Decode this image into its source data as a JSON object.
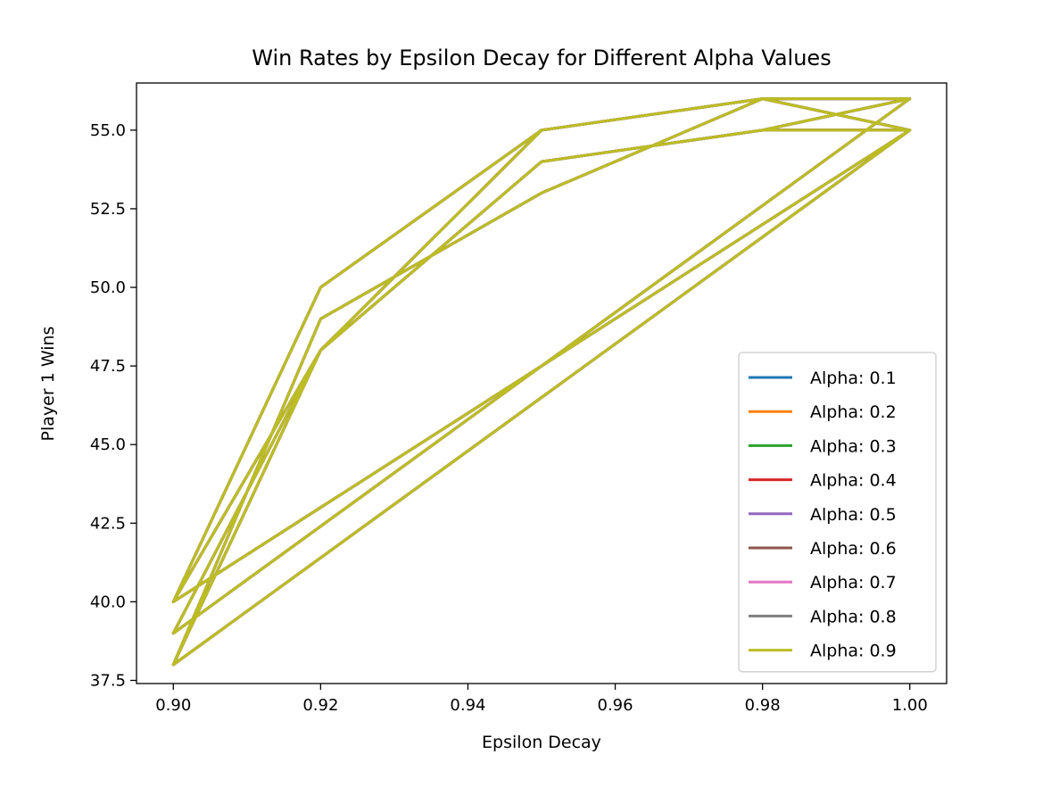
{
  "chart_data": {
    "type": "line",
    "title": "Win Rates by Epsilon Decay for Different Alpha Values",
    "xlabel": "Epsilon Decay",
    "ylabel": "Player 1 Wins",
    "xlim": [
      0.895,
      1.005
    ],
    "ylim": [
      37.4,
      56.5
    ],
    "xticks": [
      0.9,
      0.92,
      0.94,
      0.96,
      0.98,
      1.0
    ],
    "xtick_labels": [
      "0.90",
      "0.92",
      "0.94",
      "0.96",
      "0.98",
      "1.00"
    ],
    "yticks": [
      37.5,
      40.0,
      42.5,
      45.0,
      47.5,
      50.0,
      52.5,
      55.0
    ],
    "ytick_labels": [
      "37.5",
      "40.0",
      "42.5",
      "45.0",
      "47.5",
      "50.0",
      "52.5",
      "55.0"
    ],
    "grid": false,
    "legend_position": "lower-right",
    "path_points": [
      [
        0.9,
        40
      ],
      [
        0.92,
        50
      ],
      [
        0.95,
        55
      ],
      [
        0.98,
        56
      ],
      [
        1.0,
        56
      ],
      [
        0.9,
        39
      ],
      [
        0.92,
        48
      ],
      [
        0.95,
        54
      ],
      [
        0.98,
        55
      ],
      [
        1.0,
        55
      ],
      [
        0.9,
        38
      ],
      [
        0.92,
        49
      ],
      [
        0.95,
        53
      ],
      [
        0.98,
        56
      ],
      [
        1.0,
        55
      ],
      [
        0.9,
        40
      ],
      [
        0.92,
        48
      ],
      [
        0.95,
        54
      ],
      [
        0.98,
        55
      ],
      [
        1.0,
        56
      ],
      [
        0.9,
        39
      ],
      [
        0.92,
        48
      ],
      [
        0.95,
        55
      ],
      [
        0.98,
        56
      ],
      [
        1.0,
        55
      ],
      [
        0.9,
        38
      ],
      [
        0.92,
        48
      ],
      [
        0.95,
        54
      ],
      [
        0.98,
        55
      ],
      [
        1.0,
        56
      ],
      [
        0.9,
        39
      ]
    ],
    "series": [
      {
        "name": "Alpha: 0.1",
        "color": "#1f77b4"
      },
      {
        "name": "Alpha: 0.2",
        "color": "#ff7f0e"
      },
      {
        "name": "Alpha: 0.3",
        "color": "#2ca02c"
      },
      {
        "name": "Alpha: 0.4",
        "color": "#d62728"
      },
      {
        "name": "Alpha: 0.5",
        "color": "#9467bd"
      },
      {
        "name": "Alpha: 0.6",
        "color": "#8c564b"
      },
      {
        "name": "Alpha: 0.7",
        "color": "#e377c2"
      },
      {
        "name": "Alpha: 0.8",
        "color": "#7f7f7f"
      },
      {
        "name": "Alpha: 0.9",
        "color": "#bcbd22"
      }
    ]
  }
}
